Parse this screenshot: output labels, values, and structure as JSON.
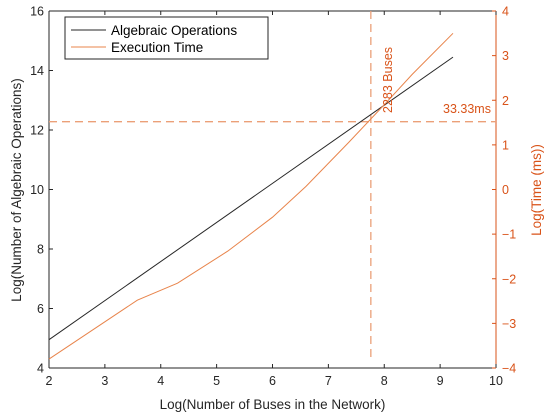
{
  "chart_data": {
    "type": "line",
    "xlabel": "Log(Number of Buses in the Network)",
    "ylabel_left": "Log(Number of Algebraic Operations)",
    "ylabel_right": "Log(Time (ms))",
    "xlim": [
      2,
      10
    ],
    "ylim_left": [
      4,
      16
    ],
    "ylim_right": [
      -4,
      4
    ],
    "x_ticks": [
      "2",
      "3",
      "4",
      "5",
      "6",
      "7",
      "8",
      "9",
      "10"
    ],
    "y_left_ticks": [
      "4",
      "6",
      "8",
      "10",
      "12",
      "14",
      "16"
    ],
    "y_right_ticks": [
      "−4",
      "−3",
      "−2",
      "−1",
      "0",
      "1",
      "2",
      "3",
      "4"
    ],
    "legend_position": "top-left",
    "grid": false,
    "series": [
      {
        "name": "Algebraic Operations",
        "axis": "left",
        "color": "#262626",
        "points": [
          [
            2.0,
            4.95
          ],
          [
            9.23,
            14.45
          ]
        ]
      },
      {
        "name": "Execution Time",
        "axis": "right",
        "color": "#e8844b",
        "points": [
          [
            2.0,
            -3.8
          ],
          [
            3.58,
            -2.48
          ],
          [
            4.3,
            -2.1
          ],
          [
            5.2,
            -1.38
          ],
          [
            6.0,
            -0.62
          ],
          [
            6.6,
            0.07
          ],
          [
            7.36,
            1.05
          ],
          [
            7.76,
            1.58
          ],
          [
            8.0,
            1.9
          ],
          [
            8.5,
            2.58
          ],
          [
            9.23,
            3.5
          ]
        ]
      }
    ],
    "annotations": {
      "vline": {
        "x": 7.76,
        "label": "2283 Buses"
      },
      "hline": {
        "y": 1.52,
        "axis": "right",
        "label": "33.33ms"
      }
    }
  }
}
